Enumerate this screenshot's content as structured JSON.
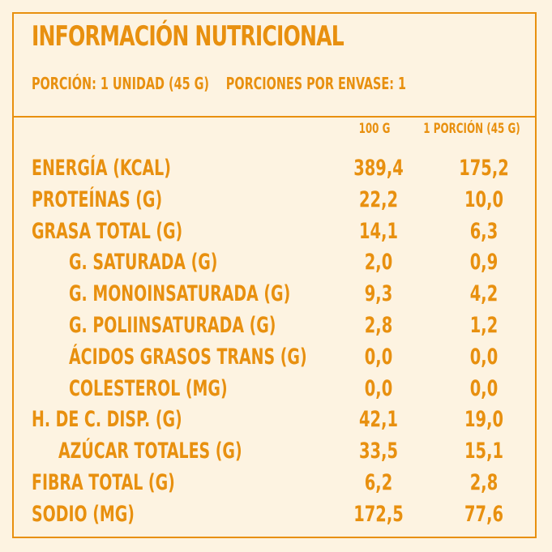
{
  "title": "INFORMACIÓN NUTRICIONAL",
  "portion": "PORCIÓN: 1 UNIDAD (45 G)",
  "portions_per_pack": "PORCIONES POR ENVASE: 1",
  "columns": {
    "per_100g": "100 G",
    "per_portion": "1 PORCIÓN (45 G)"
  },
  "rows": [
    {
      "label": "ENERGÍA (KCAL)",
      "per_100g": "389,4",
      "per_portion": "175,2"
    },
    {
      "label": "PROTEÍNAS (G)",
      "per_100g": "22,2",
      "per_portion": "10,0"
    },
    {
      "label": "GRASA TOTAL (G)",
      "per_100g": "14,1",
      "per_portion": "6,3"
    },
    {
      "label": "G. SATURADA (G)",
      "per_100g": "2,0",
      "per_portion": "0,9"
    },
    {
      "label": "G. MONOINSATURADA (G)",
      "per_100g": "9,3",
      "per_portion": "4,2"
    },
    {
      "label": "G. POLIINSATURADA (G)",
      "per_100g": "2,8",
      "per_portion": "1,2"
    },
    {
      "label": "ÁCIDOS GRASOS TRANS (G)",
      "per_100g": "0,0",
      "per_portion": "0,0"
    },
    {
      "label": "COLESTEROL (MG)",
      "per_100g": "0,0",
      "per_portion": "0,0"
    },
    {
      "label": "H. DE C. DISP. (G)",
      "per_100g": "42,1",
      "per_portion": "19,0"
    },
    {
      "label": "AZÚCAR TOTALES (G)",
      "per_100g": "33,5",
      "per_portion": "15,1"
    },
    {
      "label": "FIBRA TOTAL (G)",
      "per_100g": "6,2",
      "per_portion": "2,8"
    },
    {
      "label": "SODIO (MG)",
      "per_100g": "172,5",
      "per_portion": "77,6"
    }
  ],
  "colors": {
    "text": "#e8900f",
    "background": "#fdf3e1"
  }
}
